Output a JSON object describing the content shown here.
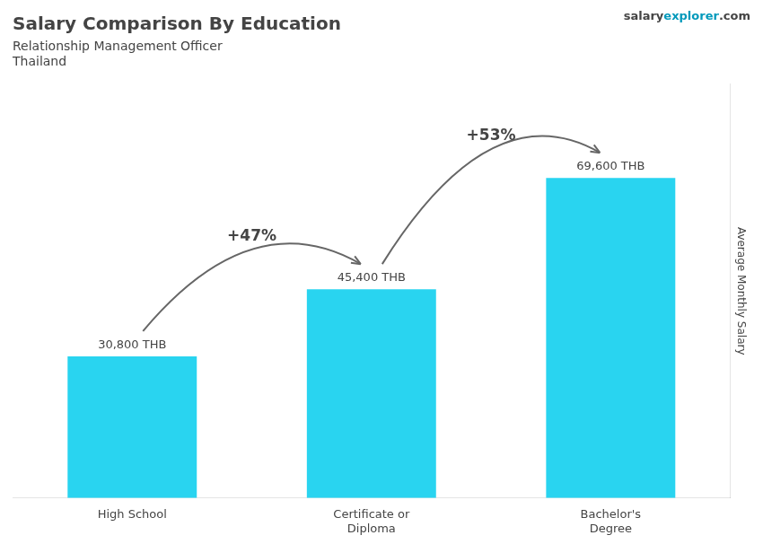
{
  "chart_data": {
    "type": "bar",
    "title": "Salary Comparison By Education",
    "subtitle": [
      "Relationship Management Officer",
      "Thailand"
    ],
    "source": [
      "salary",
      "explorer",
      ".com"
    ],
    "ylabel": "Average Monthly Salary",
    "categories": [
      "High School",
      "Certificate or\nDiploma",
      "Bachelor's\nDegree"
    ],
    "values": [
      30800,
      45400,
      69600
    ],
    "value_labels": [
      "30,800 THB",
      "45,400 THB",
      "69,600 THB"
    ],
    "annotations": [
      "+47%",
      "+53%"
    ],
    "color": "#29d4f0",
    "ylim": [
      0,
      90000
    ],
    "grid": false,
    "data_labels": true,
    "tick_labels": "x"
  }
}
